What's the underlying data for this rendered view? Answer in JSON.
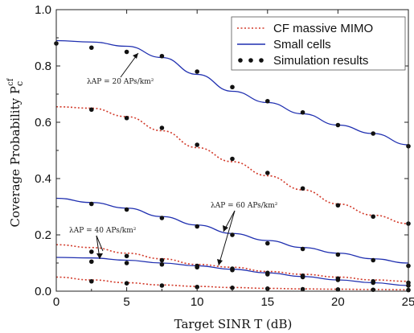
{
  "chart_data": {
    "type": "line",
    "xlabel": "Target SINR T (dB)",
    "ylabel": "Coverage Probability P",
    "ylabel_sup": "cf",
    "ylabel_sub": "c",
    "xlim": [
      0,
      25
    ],
    "ylim": [
      0,
      1.0
    ],
    "x_ticks": [
      "0",
      "5",
      "10",
      "15",
      "20",
      "25"
    ],
    "y_ticks": [
      "0.0",
      "0.2",
      "0.4",
      "0.6",
      "0.8",
      "1.0"
    ],
    "legend": {
      "placement": "top-right",
      "entries": [
        {
          "label": "CF massive MIMO",
          "style": "dotted",
          "color": "#d23a2a"
        },
        {
          "label": "Small cells",
          "style": "solid",
          "color": "#1f2fb0"
        },
        {
          "label": "Simulation results",
          "style": "markers",
          "color": "#111111"
        }
      ]
    },
    "annotations": [
      {
        "text": "λAP = 20 APs/km²",
        "points_to": "small-cells-top"
      },
      {
        "text": "λAP = 60 APs/km²",
        "points_to": "mid-curves"
      },
      {
        "text": "λAP = 40 APs/km²",
        "points_to": "lower-curves"
      }
    ],
    "series": [
      {
        "name": "Small cells",
        "style": "solid",
        "color": "#1f2fb0",
        "x": [
          0,
          2.5,
          5,
          7.5,
          10,
          12.5,
          15,
          17.5,
          20,
          22.5,
          25
        ],
        "y": [
          0.89,
          0.885,
          0.87,
          0.83,
          0.77,
          0.71,
          0.67,
          0.63,
          0.59,
          0.56,
          0.52
        ]
      },
      {
        "name": "CF massive MIMO",
        "style": "dotted",
        "color": "#d23a2a",
        "x": [
          0,
          2.5,
          5,
          7.5,
          10,
          12.5,
          15,
          17.5,
          20,
          22.5,
          25
        ],
        "y": [
          0.655,
          0.65,
          0.62,
          0.57,
          0.51,
          0.46,
          0.41,
          0.36,
          0.31,
          0.27,
          0.24
        ]
      },
      {
        "name": "Small cells",
        "style": "solid",
        "color": "#1f2fb0",
        "x": [
          0,
          2.5,
          5,
          7.5,
          10,
          12.5,
          15,
          17.5,
          20,
          22.5,
          25
        ],
        "y": [
          0.33,
          0.315,
          0.295,
          0.265,
          0.235,
          0.205,
          0.18,
          0.155,
          0.135,
          0.115,
          0.1
        ]
      },
      {
        "name": "CF massive MIMO",
        "style": "dotted",
        "color": "#d23a2a",
        "x": [
          0,
          2.5,
          5,
          7.5,
          10,
          12.5,
          15,
          17.5,
          20,
          22.5,
          25
        ],
        "y": [
          0.165,
          0.155,
          0.135,
          0.115,
          0.095,
          0.085,
          0.07,
          0.06,
          0.05,
          0.04,
          0.035
        ]
      },
      {
        "name": "Small cells",
        "style": "solid",
        "color": "#1f2fb0",
        "x": [
          0,
          2.5,
          5,
          7.5,
          10,
          12.5,
          15,
          17.5,
          20,
          22.5,
          25
        ],
        "y": [
          0.12,
          0.118,
          0.11,
          0.1,
          0.09,
          0.078,
          0.065,
          0.052,
          0.04,
          0.03,
          0.02
        ]
      },
      {
        "name": "CF massive MIMO",
        "style": "dotted",
        "color": "#d23a2a",
        "x": [
          0,
          2.5,
          5,
          7.5,
          10,
          12.5,
          15,
          17.5,
          20,
          22.5,
          25
        ],
        "y": [
          0.05,
          0.04,
          0.03,
          0.022,
          0.017,
          0.013,
          0.01,
          0.008,
          0.007,
          0.006,
          0.005
        ]
      }
    ],
    "simulation_points": [
      {
        "x": [
          0,
          2.5,
          5,
          7.5,
          10,
          12.5,
          15,
          17.5,
          20,
          22.5,
          25
        ],
        "y": [
          0.88,
          0.865,
          0.85,
          0.835,
          0.78,
          0.725,
          0.675,
          0.635,
          0.59,
          0.56,
          0.515
        ]
      },
      {
        "x": [
          2.5,
          5,
          7.5,
          10,
          12.5,
          15,
          17.5,
          20,
          22.5,
          25
        ],
        "y": [
          0.645,
          0.615,
          0.58,
          0.52,
          0.47,
          0.42,
          0.365,
          0.305,
          0.265,
          0.24
        ]
      },
      {
        "x": [
          2.5,
          5,
          7.5,
          10,
          12.5,
          15,
          17.5,
          20,
          22.5,
          25
        ],
        "y": [
          0.31,
          0.29,
          0.26,
          0.23,
          0.2,
          0.17,
          0.15,
          0.13,
          0.11,
          0.09
        ]
      },
      {
        "x": [
          2.5,
          5,
          7.5,
          10,
          12.5,
          15,
          17.5,
          20,
          22.5,
          25
        ],
        "y": [
          0.14,
          0.125,
          0.11,
          0.09,
          0.08,
          0.065,
          0.055,
          0.045,
          0.035,
          0.03
        ]
      },
      {
        "x": [
          2.5,
          5,
          7.5,
          10,
          12.5,
          15,
          17.5,
          20,
          22.5,
          25
        ],
        "y": [
          0.105,
          0.1,
          0.095,
          0.085,
          0.075,
          0.06,
          0.05,
          0.04,
          0.03,
          0.02
        ]
      },
      {
        "x": [
          2.5,
          5,
          7.5,
          10,
          12.5,
          15,
          17.5,
          20,
          22.5,
          25
        ],
        "y": [
          0.035,
          0.028,
          0.02,
          0.015,
          0.012,
          0.009,
          0.007,
          0.006,
          0.005,
          0.004
        ]
      }
    ]
  }
}
